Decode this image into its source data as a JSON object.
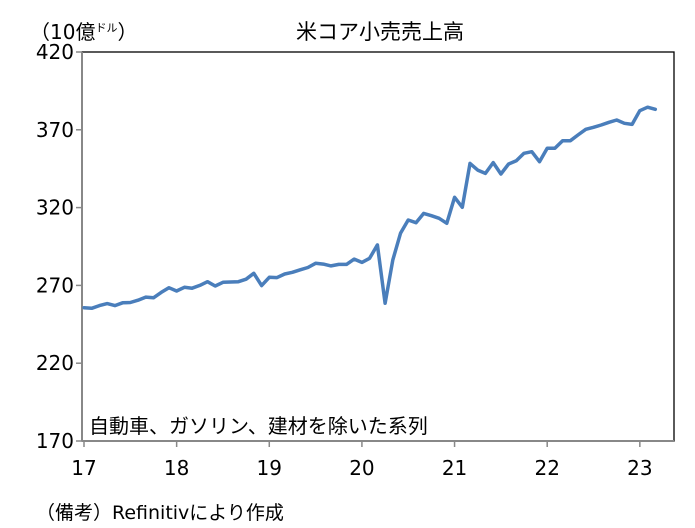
{
  "chart_data": {
    "type": "line",
    "title": "米コア小売売上高",
    "unit_label": {
      "open": "（10億",
      "small": "ドル",
      "close": "）"
    },
    "annotation": "自動車、ガソリン、建材を除いた系列",
    "source": "（備考）Refinitivにより作成",
    "ylim": [
      170,
      420
    ],
    "yticks": [
      170,
      220,
      270,
      320,
      370,
      420
    ],
    "xticks": [
      "17",
      "18",
      "19",
      "20",
      "21",
      "22",
      "23"
    ],
    "x_start": "2017-01",
    "x_frequency": "monthly",
    "grid": false,
    "line_color": "#4a7ebb",
    "values": [
      255.7,
      255.3,
      257,
      258.3,
      257,
      258.8,
      259,
      260.5,
      262.5,
      262,
      265.5,
      268.5,
      266.4,
      268.8,
      268.2,
      270,
      272.4,
      269.6,
      272,
      272.2,
      272.4,
      274,
      277.8,
      269.9,
      275.2,
      275,
      277.3,
      278.4,
      280,
      281.5,
      284.2,
      283.7,
      282.5,
      283.5,
      283.5,
      286.9,
      284.8,
      287.4,
      296,
      258.5,
      286.3,
      303.5,
      312,
      310.3,
      316.3,
      314.8,
      313.1,
      309.9,
      326.6,
      320.2,
      348.4,
      344.1,
      342,
      348.9,
      341.6,
      348,
      350.1,
      354.9,
      355.9,
      349.5,
      358.1,
      358.1,
      363,
      363,
      366.7,
      370.3,
      371.6,
      373.1,
      374.8,
      376.3,
      374.2,
      373.5,
      382.3,
      384.5,
      383.2
    ]
  }
}
